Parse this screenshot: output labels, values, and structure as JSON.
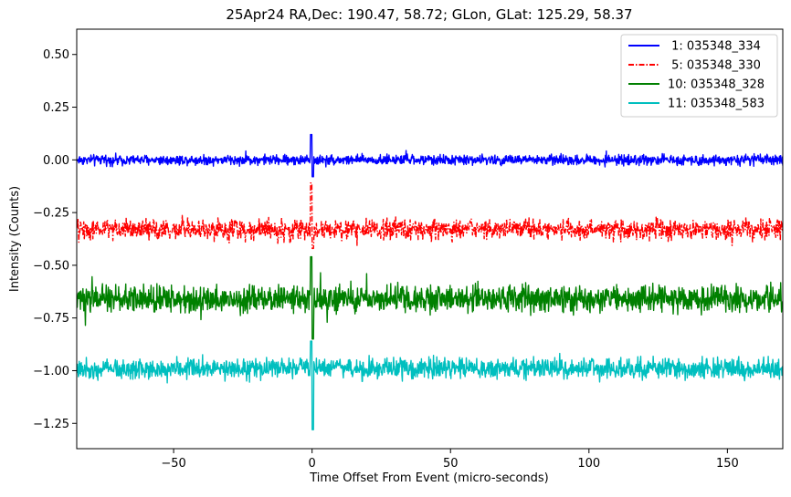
{
  "chart_data": {
    "type": "line",
    "title": "25Apr24 RA,Dec:  190.47,  58.72; GLon, GLat:  125.29,  58.37",
    "xlabel": "Time Offset From Event (micro-seconds)",
    "ylabel": "Intensity (Counts)",
    "xlim": [
      -85,
      170
    ],
    "ylim": [
      -1.37,
      0.62
    ],
    "xticks": [
      -50,
      0,
      50,
      100,
      150
    ],
    "xtick_labels": [
      "−50",
      "0",
      "50",
      "100",
      "150"
    ],
    "yticks": [
      0.5,
      0.25,
      0.0,
      -0.25,
      -0.5,
      -0.75,
      -1.0,
      -1.25
    ],
    "ytick_labels": [
      "0.50",
      "0.25",
      "0.00",
      "−0.25",
      "−0.50",
      "−0.75",
      "−1.00",
      "−1.25"
    ],
    "grid": false,
    "legend_position": "top-right",
    "event_time": 0,
    "series": [
      {
        "name": " 1: 035348_334",
        "color": "#0000ff",
        "style": "solid",
        "baseline": 0.0,
        "noise_amplitude": 0.035,
        "spike_max": 0.12,
        "spike_min": -0.08
      },
      {
        "name": " 5: 035348_330",
        "color": "#ff0000",
        "style": "dashdot",
        "baseline": -0.33,
        "noise_amplitude": 0.07,
        "spike_max": -0.11,
        "spike_min": -0.42
      },
      {
        "name": "10: 035348_328",
        "color": "#008000",
        "style": "solid",
        "baseline": -0.66,
        "noise_amplitude": 0.09,
        "spike_max": -0.46,
        "spike_min": -0.85
      },
      {
        "name": "11: 035348_583",
        "color": "#00bfbf",
        "style": "solid",
        "baseline": -0.99,
        "noise_amplitude": 0.07,
        "spike_max": -0.86,
        "spike_min": -1.28
      }
    ]
  }
}
